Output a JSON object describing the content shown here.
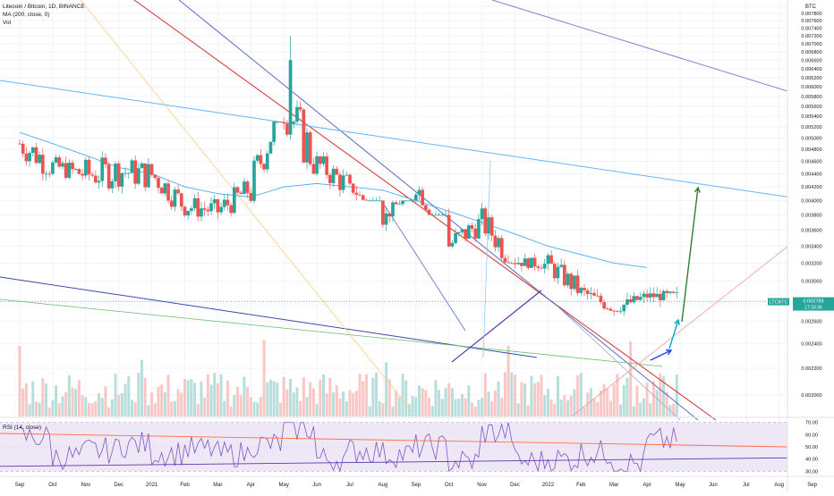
{
  "header": {
    "title": "Litecoin / Bitcoin, 1D, BINANCE",
    "ma_label": "MA (200, close, 0)",
    "vol_label": "Vol",
    "rsi_label": "RSI (14, close)"
  },
  "price_axis": {
    "currency": "BTC",
    "ticks": [
      "0.008000",
      "0.007800",
      "0.007600",
      "0.007400",
      "0.007200",
      "0.007000",
      "0.006800",
      "0.006600",
      "0.006400",
      "0.006200",
      "0.006000",
      "0.005800",
      "0.005600",
      "0.005400",
      "0.005200",
      "0.005000",
      "0.004800",
      "0.004600",
      "0.004400",
      "0.004200",
      "0.004000",
      "0.003800",
      "0.003600",
      "0.003400",
      "0.003200",
      "0.003000",
      "0.002800",
      "0.002600",
      "0.002400",
      "0.002200",
      "0.002000"
    ]
  },
  "rsi_axis": {
    "ticks": [
      "70.00",
      "60.00",
      "50.00",
      "40.00",
      "30.00"
    ]
  },
  "last_price": {
    "symbol": "LTCBTC",
    "value": "0.002789",
    "countdown": "17:33:36"
  },
  "x_axis": {
    "ticks": [
      "Sep",
      "Oct",
      "Nov",
      "Dec",
      "2021",
      "Feb",
      "Mar",
      "Apr",
      "May",
      "Jun",
      "Jul",
      "Aug",
      "Sep",
      "Oct",
      "Nov",
      "Dec",
      "2022",
      "Feb",
      "Mar",
      "Apr",
      "May",
      "Jun",
      "Jul",
      "Aug",
      "Sep"
    ]
  },
  "colors": {
    "bull": "#26a69a",
    "bear": "#ef5350",
    "ma": "#2196f3",
    "rsi": "#7e57c2",
    "rsi_band": "#ede7f6",
    "arrow_green": "#2e7d32",
    "arrow_teal": "#00acc1",
    "arrow_blue": "#1e40ff"
  },
  "chart_data": {
    "type": "candlestick",
    "symbol": "LTCBTC",
    "interval": "1D",
    "exchange": "BINANCE",
    "y_scale": "log",
    "ylim": [
      0.0019,
      0.0081
    ],
    "ohlc_approx": [
      {
        "month": "2020-09",
        "high": 0.00572,
        "low": 0.0042
      },
      {
        "month": "2020-10",
        "high": 0.005,
        "low": 0.0041
      },
      {
        "month": "2020-11",
        "high": 0.0052,
        "low": 0.0037
      },
      {
        "month": "2020-12",
        "high": 0.0052,
        "low": 0.0038
      },
      {
        "month": "2021-01",
        "high": 0.005,
        "low": 0.00385
      },
      {
        "month": "2021-02",
        "high": 0.0044,
        "low": 0.0035
      },
      {
        "month": "2021-03",
        "high": 0.0044,
        "low": 0.00338
      },
      {
        "month": "2021-04",
        "high": 0.0053,
        "low": 0.0033
      },
      {
        "month": "2021-05",
        "high": 0.0072,
        "low": 0.0044
      },
      {
        "month": "2021-06",
        "high": 0.0052,
        "low": 0.004
      },
      {
        "month": "2021-07",
        "high": 0.0044,
        "low": 0.004
      },
      {
        "month": "2021-08",
        "high": 0.004,
        "low": 0.0035
      },
      {
        "month": "2021-09",
        "high": 0.0047,
        "low": 0.0038
      },
      {
        "month": "2021-10",
        "high": 0.0039,
        "low": 0.00298
      },
      {
        "month": "2021-11",
        "high": 0.0043,
        "low": 0.0032
      },
      {
        "month": "2021-12",
        "high": 0.0034,
        "low": 0.00305
      },
      {
        "month": "2022-01",
        "high": 0.00355,
        "low": 0.00285
      },
      {
        "month": "2022-02",
        "high": 0.0031,
        "low": 0.0027
      },
      {
        "month": "2022-03",
        "high": 0.0029,
        "low": 0.00255
      },
      {
        "month": "2022-04",
        "high": 0.003,
        "low": 0.0027
      }
    ],
    "ma200_approx": [
      0.0051,
      0.0049,
      0.0047,
      0.0045,
      0.0044,
      0.0042,
      0.0041,
      0.00405,
      0.0042,
      0.00425,
      0.0042,
      0.00415,
      0.004,
      0.00385,
      0.0037,
      0.00355,
      0.0034,
      0.0033,
      0.0032,
      0.00315
    ],
    "rsi_approx": [
      58,
      42,
      47,
      52,
      45,
      48,
      44,
      52,
      65,
      40,
      47,
      44,
      50,
      38,
      62,
      38,
      40,
      45,
      36,
      55
    ],
    "rsi_ylim": [
      28,
      72
    ]
  }
}
